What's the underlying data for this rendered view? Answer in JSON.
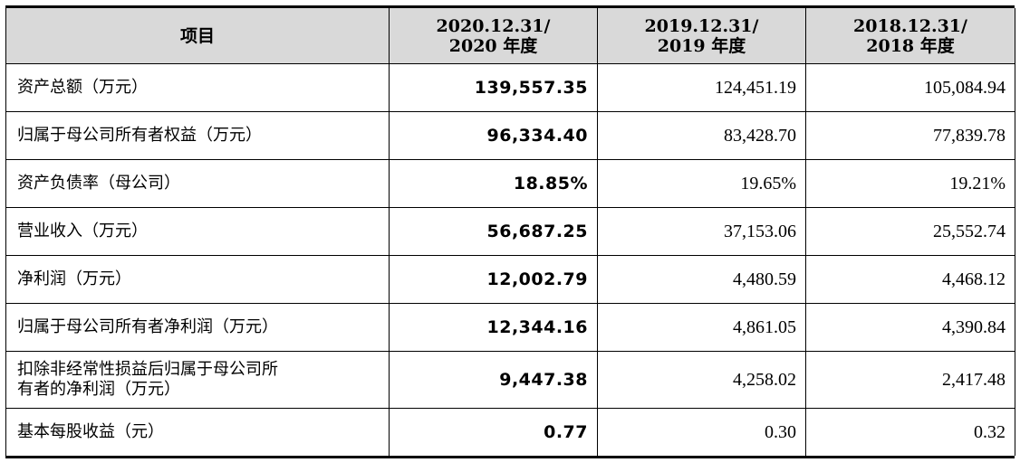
{
  "header": {
    "item": "项目",
    "col1_line1": "2020.12.31/",
    "col1_line2": "2020 年度",
    "col2_line1": "2019.12.31/",
    "col2_line2": "2019 年度",
    "col3_line1": "2018.12.31/",
    "col3_line2": "2018 年度"
  },
  "rows": [
    {
      "label": "资产总额（万元）",
      "v2020": "139,557.35",
      "v2019": "124,451.19",
      "v2018": "105,084.94"
    },
    {
      "label": "归属于母公司所有者权益（万元）",
      "v2020": "96,334.40",
      "v2019": "83,428.70",
      "v2018": "77,839.78"
    },
    {
      "label": "资产负债率（母公司）",
      "v2020": "18.85%",
      "v2019": "19.65%",
      "v2018": "19.21%"
    },
    {
      "label": "营业收入（万元）",
      "v2020": "56,687.25",
      "v2019": "37,153.06",
      "v2018": "25,552.74"
    },
    {
      "label": "净利润（万元）",
      "v2020": "12,002.79",
      "v2019": "4,480.59",
      "v2018": "4,468.12"
    },
    {
      "label": "归属于母公司所有者净利润（万元）",
      "v2020": "12,344.16",
      "v2019": "4,861.05",
      "v2018": "4,390.84"
    },
    {
      "label_line1": "扣除非经常性损益后归属于母公司所",
      "label_line2": "有者的净利润（万元）",
      "v2020": "9,447.38",
      "v2019": "4,258.02",
      "v2018": "2,417.48"
    },
    {
      "label": "基本每股收益（元）",
      "v2020": "0.77",
      "v2019": "0.30",
      "v2018": "0.32"
    }
  ]
}
